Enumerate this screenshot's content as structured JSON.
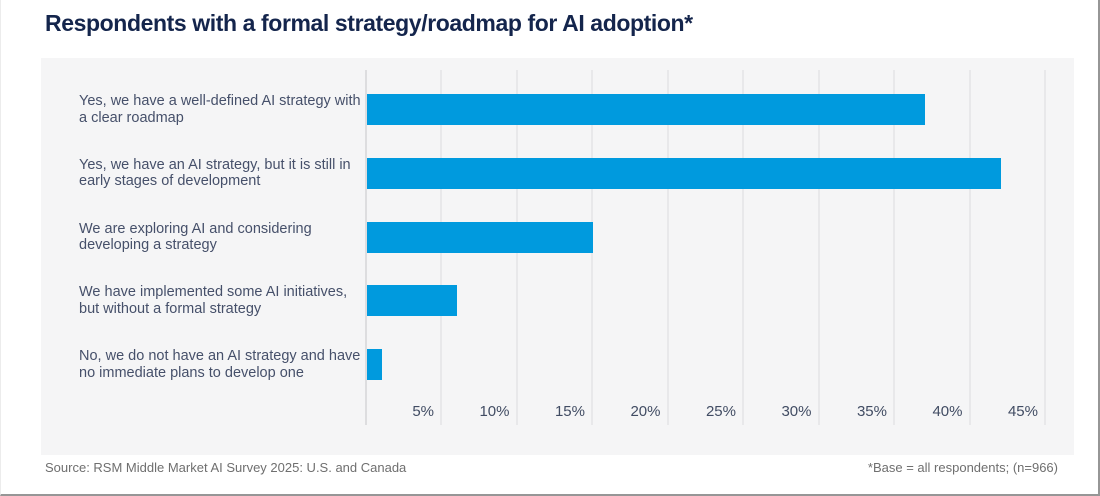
{
  "title": "Respondents with a formal strategy/roadmap for AI adoption*",
  "chart_data": {
    "type": "bar",
    "orientation": "horizontal",
    "categories": [
      "Yes, we have a well-defined AI strategy with a clear roadmap",
      "Yes, we have an AI strategy, but it is still in early stages of development",
      "We are exploring AI and considering developing a strategy",
      "We have implemented some AI initiatives, but without a formal strategy",
      "No, we do not have an AI strategy and have no immediate plans to develop one"
    ],
    "values": [
      37,
      42,
      15,
      6,
      1
    ],
    "unit": "%",
    "xlim": [
      0,
      45
    ],
    "x_tick_values": [
      5,
      10,
      15,
      20,
      25,
      30,
      35,
      40,
      45
    ],
    "x_tick_labels": [
      "5%",
      "10%",
      "15%",
      "20%",
      "25%",
      "30%",
      "35%",
      "40%",
      "45%"
    ],
    "grid": true,
    "legend": "none",
    "bar_color": "#009ade",
    "panel_background": "#f5f5f6",
    "title_color": "#14254c",
    "label_color": "#46506a"
  },
  "footer": {
    "source": "Source: RSM Middle Market AI Survey 2025: U.S. and Canada",
    "note": "*Base = all respondents; (n=966)"
  }
}
